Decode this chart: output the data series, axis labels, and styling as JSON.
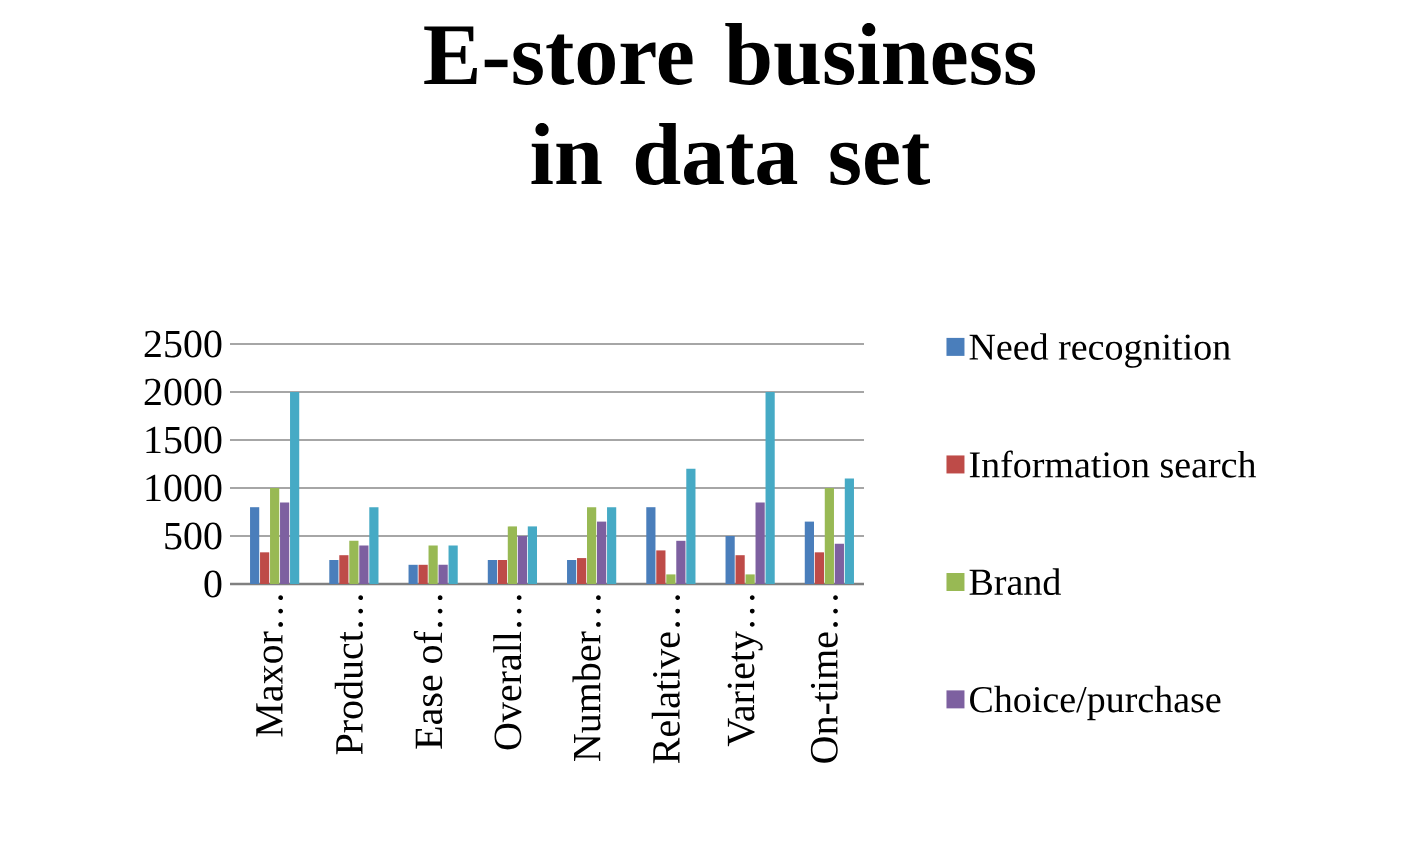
{
  "chart_data": {
    "type": "bar",
    "title": "E-store business in data set",
    "categories": [
      "Maxor…",
      "Product…",
      "Ease of…",
      "Overall…",
      "Number…",
      "Relative…",
      "Variety…",
      "On-time…"
    ],
    "series": [
      {
        "name": "Need recognition",
        "color": "#4a7ebb",
        "values": [
          800,
          250,
          200,
          250,
          250,
          800,
          500,
          650
        ]
      },
      {
        "name": "Information search",
        "color": "#be4b48",
        "values": [
          330,
          300,
          200,
          250,
          270,
          350,
          300,
          330
        ]
      },
      {
        "name": "Brand",
        "color": "#98b954",
        "values": [
          1000,
          450,
          400,
          600,
          800,
          100,
          100,
          1000
        ]
      },
      {
        "name": "Choice/purchase",
        "color": "#7d60a0",
        "values": [
          850,
          400,
          200,
          500,
          650,
          450,
          850,
          420
        ]
      },
      {
        "color": "#46aac5",
        "values": [
          2000,
          800,
          400,
          600,
          800,
          1200,
          2000,
          1100
        ]
      }
    ],
    "ylim": [
      0,
      2500
    ],
    "yticks": [
      0,
      500,
      1000,
      1500,
      2000,
      2500
    ],
    "grid": "y",
    "legend": "right"
  }
}
